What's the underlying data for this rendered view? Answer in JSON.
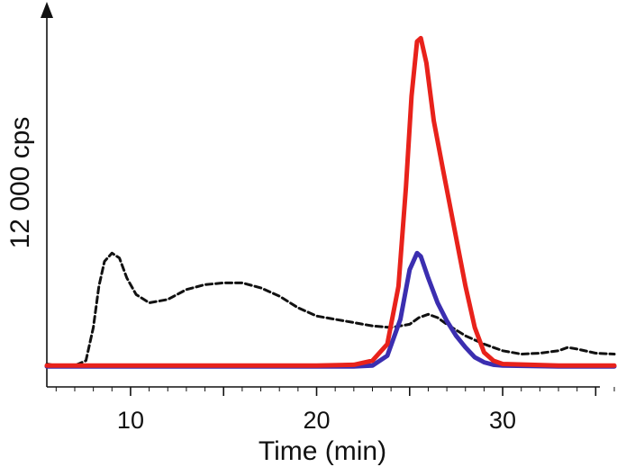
{
  "chart_data": {
    "type": "line",
    "title": "",
    "xlabel": "Time (min)",
    "ylabel": "12 000 cps",
    "xlim": [
      5.5,
      36
    ],
    "ylim": [
      0,
      21000
    ],
    "x_ticks": [
      10,
      20,
      30
    ],
    "x_minor_step": 1,
    "grid": false,
    "legend": "none",
    "series": [
      {
        "color": "#e8221b",
        "style": "solid",
        "points": [
          [
            5.5,
            200
          ],
          [
            10,
            200
          ],
          [
            15,
            200
          ],
          [
            20,
            200
          ],
          [
            22,
            250
          ],
          [
            23,
            500
          ],
          [
            23.8,
            1500
          ],
          [
            24.4,
            5000
          ],
          [
            24.8,
            11000
          ],
          [
            25.1,
            16500
          ],
          [
            25.4,
            19800
          ],
          [
            25.6,
            20000
          ],
          [
            25.9,
            18500
          ],
          [
            26.3,
            15000
          ],
          [
            26.8,
            12000
          ],
          [
            27.4,
            8500
          ],
          [
            28,
            5000
          ],
          [
            28.5,
            2500
          ],
          [
            29,
            1000
          ],
          [
            29.5,
            500
          ],
          [
            30,
            300
          ],
          [
            33,
            200
          ],
          [
            36,
            200
          ]
        ]
      },
      {
        "color": "#3b2eb0",
        "style": "solid",
        "points": [
          [
            5.5,
            150
          ],
          [
            10,
            150
          ],
          [
            15,
            150
          ],
          [
            20,
            150
          ],
          [
            22,
            150
          ],
          [
            23,
            200
          ],
          [
            23.8,
            800
          ],
          [
            24.5,
            3000
          ],
          [
            25,
            6000
          ],
          [
            25.4,
            7000
          ],
          [
            25.6,
            6800
          ],
          [
            26,
            5500
          ],
          [
            26.5,
            4000
          ],
          [
            27,
            2900
          ],
          [
            27.5,
            2000
          ],
          [
            28,
            1300
          ],
          [
            28.5,
            700
          ],
          [
            29,
            400
          ],
          [
            29.5,
            250
          ],
          [
            30,
            200
          ],
          [
            33,
            150
          ],
          [
            36,
            150
          ]
        ]
      },
      {
        "color": "#111111",
        "style": "dashed",
        "points": [
          [
            5.5,
            300
          ],
          [
            6,
            200
          ],
          [
            7,
            200
          ],
          [
            7.6,
            500
          ],
          [
            8,
            2500
          ],
          [
            8.3,
            5000
          ],
          [
            8.6,
            6500
          ],
          [
            9,
            7000
          ],
          [
            9.4,
            6700
          ],
          [
            9.8,
            5500
          ],
          [
            10.3,
            4500
          ],
          [
            11,
            4000
          ],
          [
            12,
            4200
          ],
          [
            13,
            4800
          ],
          [
            14,
            5100
          ],
          [
            15,
            5200
          ],
          [
            16,
            5200
          ],
          [
            17,
            4900
          ],
          [
            18,
            4400
          ],
          [
            19,
            3700
          ],
          [
            20,
            3200
          ],
          [
            21,
            3000
          ],
          [
            22,
            2800
          ],
          [
            23,
            2600
          ],
          [
            24,
            2500
          ],
          [
            25,
            2700
          ],
          [
            25.5,
            3100
          ],
          [
            26,
            3300
          ],
          [
            26.5,
            3100
          ],
          [
            27,
            2700
          ],
          [
            28,
            2000
          ],
          [
            29,
            1500
          ],
          [
            30,
            1100
          ],
          [
            31,
            900
          ],
          [
            32,
            950
          ],
          [
            33,
            1100
          ],
          [
            33.5,
            1300
          ],
          [
            34,
            1200
          ],
          [
            35,
            950
          ],
          [
            36,
            900
          ]
        ]
      }
    ]
  }
}
